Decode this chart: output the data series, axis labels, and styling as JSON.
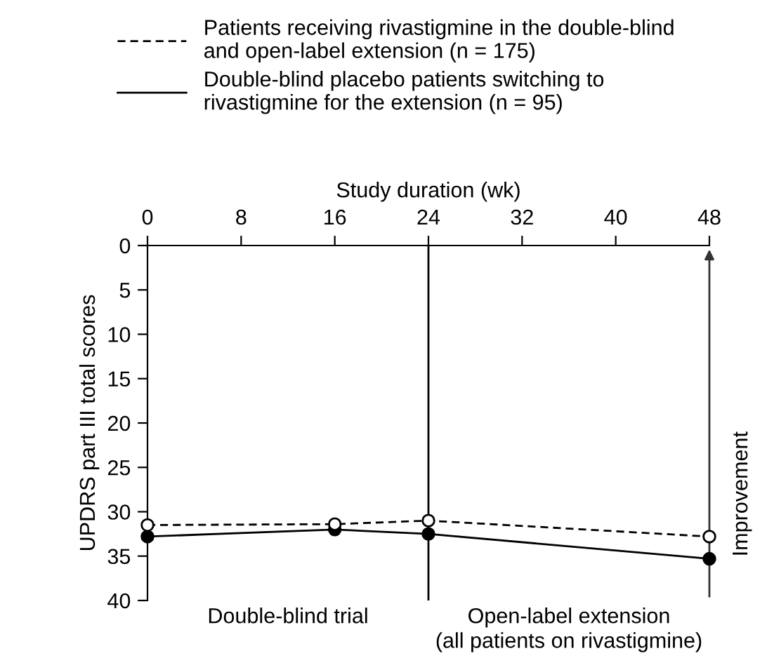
{
  "chart_data": {
    "type": "line",
    "xlabel": "Study duration (wk)",
    "ylabel": "UPDRS part III total scores",
    "xlim": [
      0,
      48
    ],
    "xticks": [
      0,
      8,
      16,
      24,
      32,
      40,
      48
    ],
    "ylim": [
      40,
      0
    ],
    "yticks": [
      0,
      5,
      10,
      15,
      20,
      25,
      30,
      35,
      40
    ],
    "x": [
      0,
      16,
      24,
      48
    ],
    "series": [
      {
        "name": "Patients receiving rivastigmine in the double-blind\nand open-label extension (n = 175)",
        "color": "#000000",
        "values": [
          31.5,
          31.4,
          31.0,
          32.8
        ],
        "line_style": "dashed",
        "marker": "circle"
      },
      {
        "name": "Double-blind placebo patients switching to\nrivastigmine for the extension (n = 95)",
        "color": "#000000",
        "values": [
          32.8,
          32.0,
          32.5,
          35.3
        ],
        "line_style": "solid",
        "marker": "circle"
      }
    ],
    "ref_lines": [
      {
        "axis": "x",
        "value": 24,
        "color": "#000000"
      }
    ],
    "annotations": [
      "Double-blind trial",
      "Open-label extension\n(all patients on rivastigmine)",
      "Improvement"
    ],
    "legend": "top",
    "grid": false
  }
}
